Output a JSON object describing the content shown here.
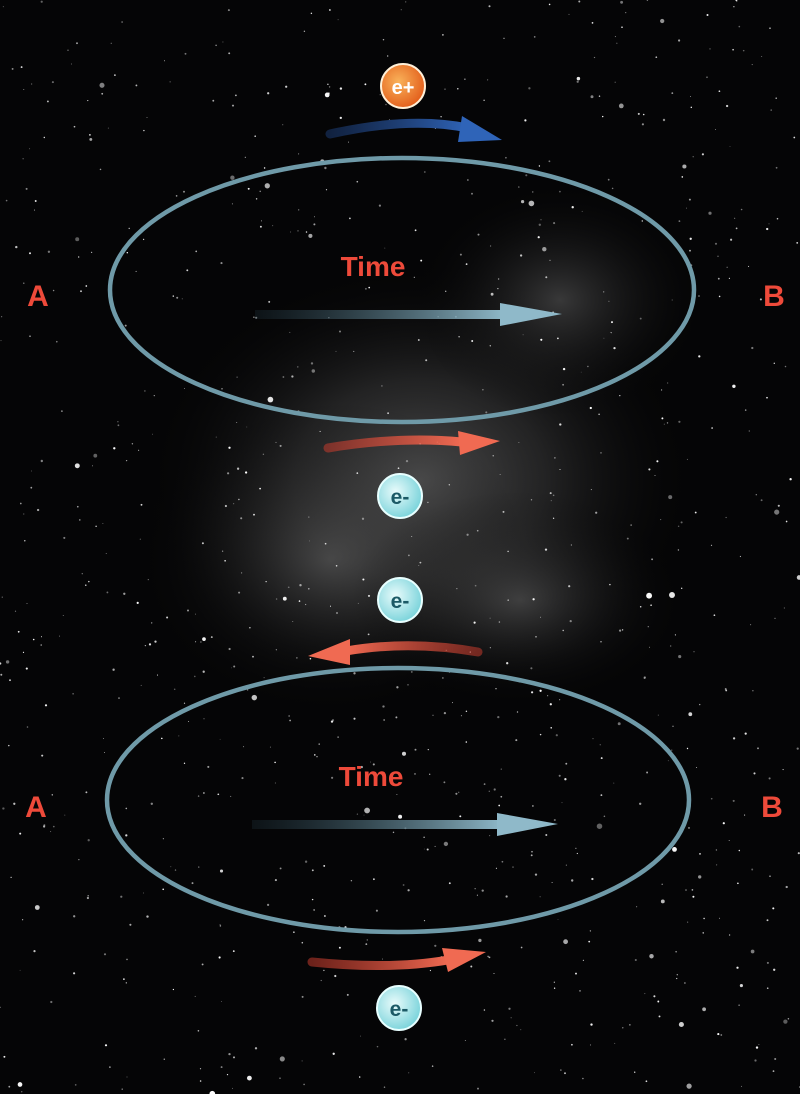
{
  "colors": {
    "background": "#050506",
    "ellipse": "#6f9aa8",
    "time_line": "#f2a22c",
    "label_red": "#ee4a3a",
    "positron_arrow": "#2f64b8",
    "electron_arrow": "#ec5c4a",
    "time_arrow": "#8fb9c9",
    "positron_fill": "#f2822c",
    "electron_fill": "#bff0f2",
    "electron_text": "#1c5a66",
    "positron_text": "#ffffff"
  },
  "top_diagram": {
    "time_label": "Time",
    "point_a": "A",
    "point_b": "B",
    "upper_particle": "e+",
    "lower_particle": "e-"
  },
  "bottom_diagram": {
    "time_label": "Time",
    "point_a": "A",
    "point_b": "B",
    "upper_particle": "e-",
    "lower_particle": "e-"
  }
}
